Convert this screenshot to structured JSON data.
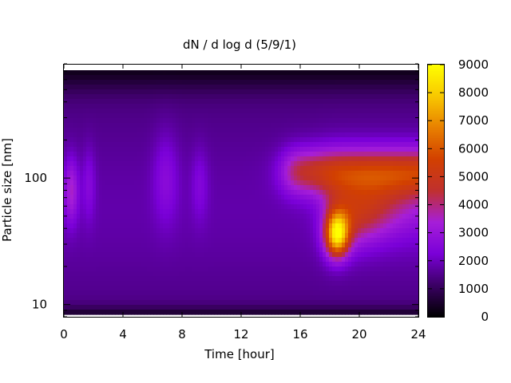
{
  "chart_data": {
    "type": "heatmap",
    "title": "dN / d log d (5/9/1)",
    "xlabel": "Time [hour]",
    "ylabel": "Particle size [nm]",
    "x_range": [
      0,
      24
    ],
    "x_ticks": [
      0,
      4,
      8,
      12,
      16,
      20,
      24
    ],
    "y_scale": "log",
    "y_range": [
      8,
      800
    ],
    "y_ticks": [
      10,
      100
    ],
    "colorbar": {
      "range": [
        0,
        9000
      ],
      "ticks": [
        0,
        1000,
        2000,
        3000,
        4000,
        5000,
        6000,
        7000,
        8000,
        9000
      ],
      "colors": [
        "#000000",
        "#3b0064",
        "#7a00d8",
        "#a61ed8",
        "#c0302e",
        "#d24000",
        "#e88000",
        "#f8c800",
        "#ffff00"
      ]
    },
    "features": [
      {
        "time_center": 0.5,
        "size_center": 80,
        "peak_value": 4300
      },
      {
        "time_center": 18.5,
        "size_center": 35,
        "peak_value": 8300
      },
      {
        "time_range": [
          14.5,
          24
        ],
        "size_center": 110,
        "peak_value": 5000
      }
    ],
    "grid": false,
    "legend": "colorbar-right"
  }
}
